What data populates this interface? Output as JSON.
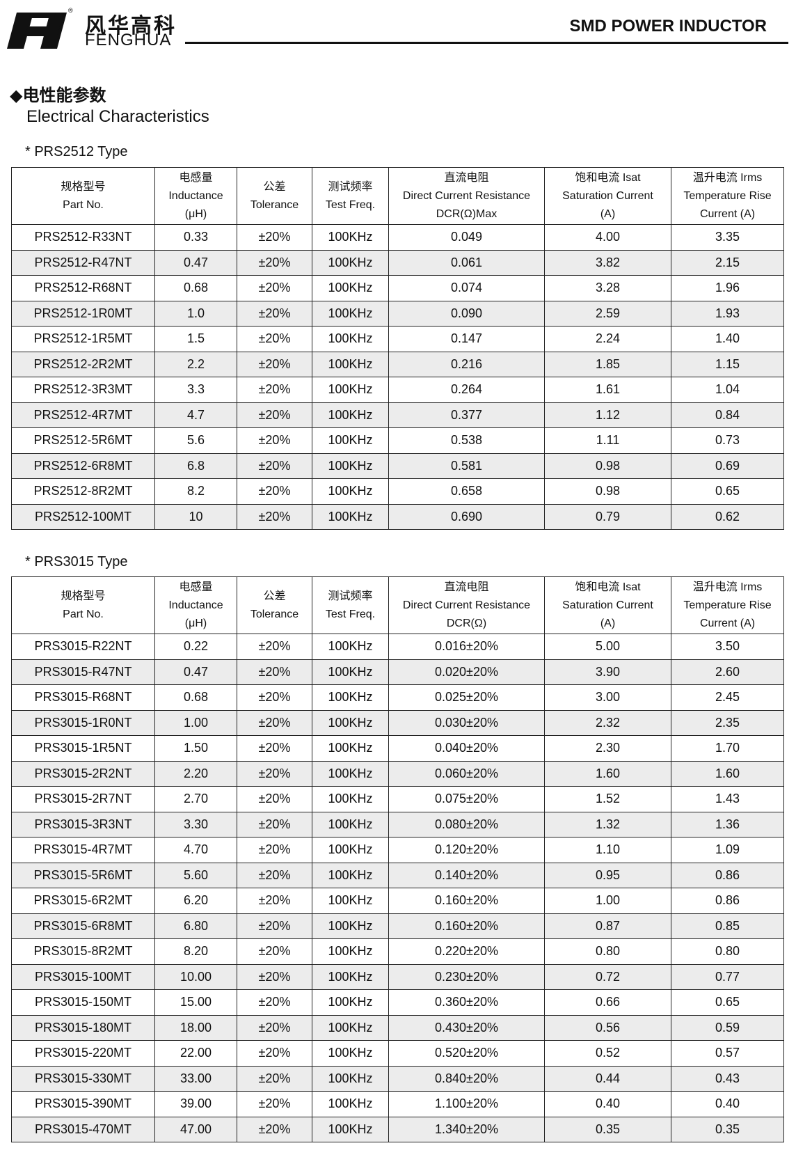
{
  "header": {
    "brand_cn": "风华高科",
    "brand_en": "FENGHUA",
    "title": "SMD POWER INDUCTOR"
  },
  "section": {
    "title_cn": "◆电性能参数",
    "title_en": "Electrical Characteristics"
  },
  "tables": [
    {
      "title": "*  PRS2512 Type",
      "columns": [
        [
          "规格型号",
          "Part No."
        ],
        [
          "电感量",
          "Inductance",
          "(μH)"
        ],
        [
          "公差",
          "Tolerance"
        ],
        [
          "测试频率",
          "Test Freq."
        ],
        [
          "直流电阻",
          "Direct Current Resistance",
          "DCR(Ω)Max"
        ],
        [
          "饱和电流  Isat",
          "Saturation Current",
          "(A)"
        ],
        [
          "温升电流  Irms",
          "Temperature Rise",
          "Current (A)"
        ]
      ],
      "rows": [
        [
          "PRS2512-R33NT",
          "0.33",
          "±20%",
          "100KHz",
          "0.049",
          "4.00",
          "3.35"
        ],
        [
          "PRS2512-R47NT",
          "0.47",
          "±20%",
          "100KHz",
          "0.061",
          "3.82",
          "2.15"
        ],
        [
          "PRS2512-R68NT",
          "0.68",
          "±20%",
          "100KHz",
          "0.074",
          "3.28",
          "1.96"
        ],
        [
          "PRS2512-1R0MT",
          "1.0",
          "±20%",
          "100KHz",
          "0.090",
          "2.59",
          "1.93"
        ],
        [
          "PRS2512-1R5MT",
          "1.5",
          "±20%",
          "100KHz",
          "0.147",
          "2.24",
          "1.40"
        ],
        [
          "PRS2512-2R2MT",
          "2.2",
          "±20%",
          "100KHz",
          "0.216",
          "1.85",
          "1.15"
        ],
        [
          "PRS2512-3R3MT",
          "3.3",
          "±20%",
          "100KHz",
          "0.264",
          "1.61",
          "1.04"
        ],
        [
          "PRS2512-4R7MT",
          "4.7",
          "±20%",
          "100KHz",
          "0.377",
          "1.12",
          "0.84"
        ],
        [
          "PRS2512-5R6MT",
          "5.6",
          "±20%",
          "100KHz",
          "0.538",
          "1.11",
          "0.73"
        ],
        [
          "PRS2512-6R8MT",
          "6.8",
          "±20%",
          "100KHz",
          "0.581",
          "0.98",
          "0.69"
        ],
        [
          "PRS2512-8R2MT",
          "8.2",
          "±20%",
          "100KHz",
          "0.658",
          "0.98",
          "0.65"
        ],
        [
          "PRS2512-100MT",
          "10",
          "±20%",
          "100KHz",
          "0.690",
          "0.79",
          "0.62"
        ]
      ]
    },
    {
      "title": "*  PRS3015 Type",
      "columns": [
        [
          "规格型号",
          "Part No."
        ],
        [
          "电感量",
          "Inductance",
          "(μH)"
        ],
        [
          "公差",
          "Tolerance"
        ],
        [
          "测试频率",
          "Test Freq."
        ],
        [
          "直流电阻",
          "Direct Current Resistance",
          "DCR(Ω)"
        ],
        [
          "饱和电流  Isat",
          "Saturation Current",
          "(A)"
        ],
        [
          "温升电流  Irms",
          "Temperature Rise",
          "Current (A)"
        ]
      ],
      "rows": [
        [
          "PRS3015-R22NT",
          "0.22",
          "±20%",
          "100KHz",
          "0.016±20%",
          "5.00",
          "3.50"
        ],
        [
          "PRS3015-R47NT",
          "0.47",
          "±20%",
          "100KHz",
          "0.020±20%",
          "3.90",
          "2.60"
        ],
        [
          "PRS3015-R68NT",
          "0.68",
          "±20%",
          "100KHz",
          "0.025±20%",
          "3.00",
          "2.45"
        ],
        [
          "PRS3015-1R0NT",
          "1.00",
          "±20%",
          "100KHz",
          "0.030±20%",
          "2.32",
          "2.35"
        ],
        [
          "PRS3015-1R5NT",
          "1.50",
          "±20%",
          "100KHz",
          "0.040±20%",
          "2.30",
          "1.70"
        ],
        [
          "PRS3015-2R2NT",
          "2.20",
          "±20%",
          "100KHz",
          "0.060±20%",
          "1.60",
          "1.60"
        ],
        [
          "PRS3015-2R7NT",
          "2.70",
          "±20%",
          "100KHz",
          "0.075±20%",
          "1.52",
          "1.43"
        ],
        [
          "PRS3015-3R3NT",
          "3.30",
          "±20%",
          "100KHz",
          "0.080±20%",
          "1.32",
          "1.36"
        ],
        [
          "PRS3015-4R7MT",
          "4.70",
          "±20%",
          "100KHz",
          "0.120±20%",
          "1.10",
          "1.09"
        ],
        [
          "PRS3015-5R6MT",
          "5.60",
          "±20%",
          "100KHz",
          "0.140±20%",
          "0.95",
          "0.86"
        ],
        [
          "PRS3015-6R2MT",
          "6.20",
          "±20%",
          "100KHz",
          "0.160±20%",
          "1.00",
          "0.86"
        ],
        [
          "PRS3015-6R8MT",
          "6.80",
          "±20%",
          "100KHz",
          "0.160±20%",
          "0.87",
          "0.85"
        ],
        [
          "PRS3015-8R2MT",
          "8.20",
          "±20%",
          "100KHz",
          "0.220±20%",
          "0.80",
          "0.80"
        ],
        [
          "PRS3015-100MT",
          "10.00",
          "±20%",
          "100KHz",
          "0.230±20%",
          "0.72",
          "0.77"
        ],
        [
          "PRS3015-150MT",
          "15.00",
          "±20%",
          "100KHz",
          "0.360±20%",
          "0.66",
          "0.65"
        ],
        [
          "PRS3015-180MT",
          "18.00",
          "±20%",
          "100KHz",
          "0.430±20%",
          "0.56",
          "0.59"
        ],
        [
          "PRS3015-220MT",
          "22.00",
          "±20%",
          "100KHz",
          "0.520±20%",
          "0.52",
          "0.57"
        ],
        [
          "PRS3015-330MT",
          "33.00",
          "±20%",
          "100KHz",
          "0.840±20%",
          "0.44",
          "0.43"
        ],
        [
          "PRS3015-390MT",
          "39.00",
          "±20%",
          "100KHz",
          "1.100±20%",
          "0.40",
          "0.40"
        ],
        [
          "PRS3015-470MT",
          "47.00",
          "±20%",
          "100KHz",
          "1.340±20%",
          "0.35",
          "0.35"
        ]
      ]
    }
  ]
}
